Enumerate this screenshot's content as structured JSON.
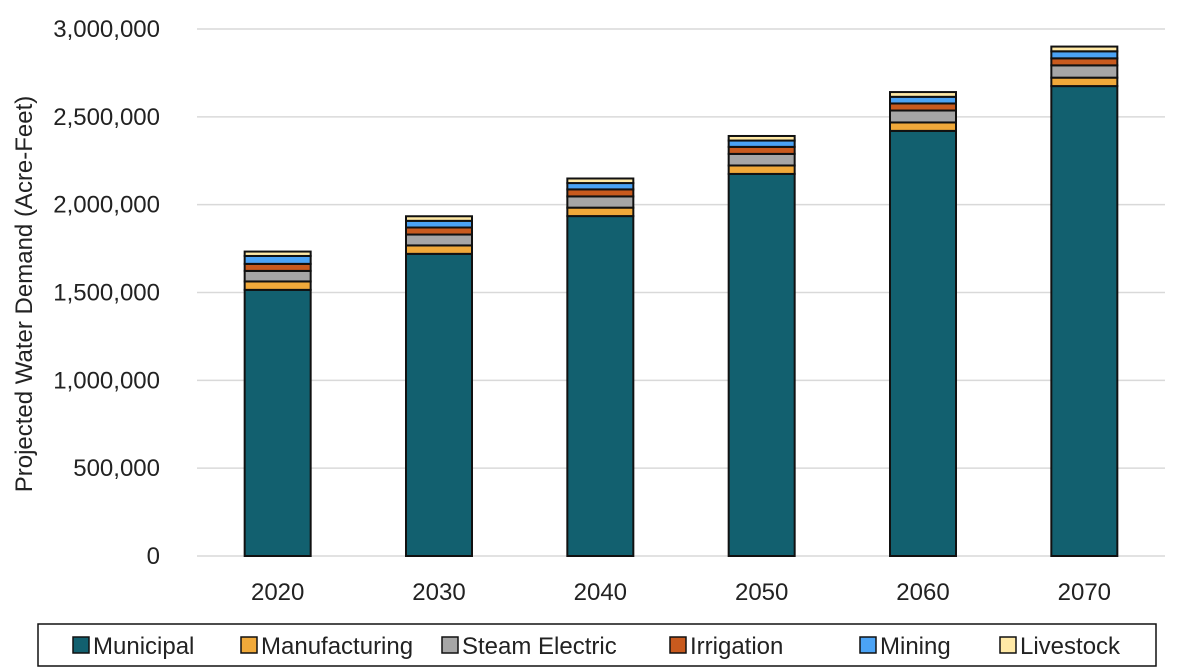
{
  "chart_data": {
    "type": "bar",
    "stacked": true,
    "title": "",
    "xlabel": "",
    "ylabel": "Projected Water Demand (Acre-Feet)",
    "ylim": [
      0,
      3000000
    ],
    "yticks": [
      0,
      500000,
      1000000,
      1500000,
      2000000,
      2500000,
      3000000
    ],
    "ytick_labels": [
      "0",
      "500,000",
      "1,000,000",
      "1,500,000",
      "2,000,000",
      "2,500,000",
      "3,000,000"
    ],
    "categories": [
      "2020",
      "2030",
      "2040",
      "2050",
      "2060",
      "2070"
    ],
    "grid": true,
    "legend_position": "bottom",
    "series": [
      {
        "name": "Municipal",
        "color": "#12606F",
        "values": [
          1515000,
          1720000,
          1935000,
          2175000,
          2420000,
          2675000
        ]
      },
      {
        "name": "Manufacturing",
        "color": "#F0A93A",
        "values": [
          48000,
          48000,
          48000,
          48000,
          48000,
          48000
        ]
      },
      {
        "name": "Steam Electric",
        "color": "#A6A6A6",
        "values": [
          60000,
          62000,
          64000,
          66000,
          68000,
          70000
        ]
      },
      {
        "name": "Irrigation",
        "color": "#C85A1E",
        "values": [
          40000,
          40000,
          40000,
          40000,
          40000,
          40000
        ]
      },
      {
        "name": "Mining",
        "color": "#4BA3F5",
        "values": [
          45000,
          38000,
          36000,
          36000,
          38000,
          40000
        ]
      },
      {
        "name": "Livestock",
        "color": "#FFE9A6",
        "values": [
          25000,
          26000,
          26000,
          26000,
          27000,
          27000
        ]
      }
    ]
  }
}
